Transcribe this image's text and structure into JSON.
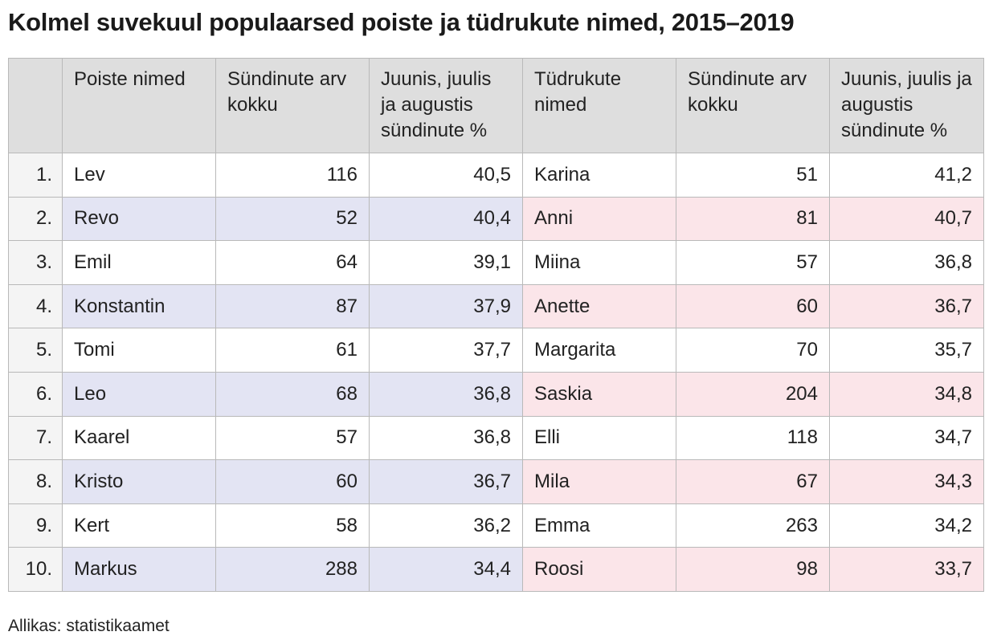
{
  "title": "Kolmel suvekuul populaarsed poiste ja tüdrukute nimed, 2015–2019",
  "source": "Allikas: statistikaamet",
  "colors": {
    "header_bg": "#dedede",
    "boys_highlight": "#e3e4f3",
    "girls_highlight": "#fbe5e9",
    "rank_bg": "#f4f4f4"
  },
  "chart_data": {
    "type": "table",
    "title": "Kolmel suvekuul populaarsed poiste ja tüdrukute nimed, 2015–2019",
    "headers": {
      "rank": "",
      "boys_name": "Poiste nimed",
      "boys_total": "Sündinute arv kokku",
      "boys_pct": "Juunis, juulis ja augustis sündinute %",
      "girls_name": "Tüdrukute nimed",
      "girls_total": "Sündinute arv kokku",
      "girls_pct": "Juunis, juulis ja augustis sündinute %"
    },
    "rows": [
      {
        "rank": "1.",
        "boy": "Lev",
        "boy_total": "116",
        "boy_pct": "40,5",
        "girl": "Karina",
        "girl_total": "51",
        "girl_pct": "41,2"
      },
      {
        "rank": "2.",
        "boy": "Revo",
        "boy_total": "52",
        "boy_pct": "40,4",
        "girl": "Anni",
        "girl_total": "81",
        "girl_pct": "40,7"
      },
      {
        "rank": "3.",
        "boy": "Emil",
        "boy_total": "64",
        "boy_pct": "39,1",
        "girl": "Miina",
        "girl_total": "57",
        "girl_pct": "36,8"
      },
      {
        "rank": "4.",
        "boy": "Konstantin",
        "boy_total": "87",
        "boy_pct": "37,9",
        "girl": "Anette",
        "girl_total": "60",
        "girl_pct": "36,7"
      },
      {
        "rank": "5.",
        "boy": "Tomi",
        "boy_total": "61",
        "boy_pct": "37,7",
        "girl": "Margarita",
        "girl_total": "70",
        "girl_pct": "35,7"
      },
      {
        "rank": "6.",
        "boy": "Leo",
        "boy_total": "68",
        "boy_pct": "36,8",
        "girl": "Saskia",
        "girl_total": "204",
        "girl_pct": "34,8"
      },
      {
        "rank": "7.",
        "boy": "Kaarel",
        "boy_total": "57",
        "boy_pct": "36,8",
        "girl": "Elli",
        "girl_total": "118",
        "girl_pct": "34,7"
      },
      {
        "rank": "8.",
        "boy": "Kristo",
        "boy_total": "60",
        "boy_pct": "36,7",
        "girl": "Mila",
        "girl_total": "67",
        "girl_pct": "34,3"
      },
      {
        "rank": "9.",
        "boy": "Kert",
        "boy_total": "58",
        "boy_pct": "36,2",
        "girl": "Emma",
        "girl_total": "263",
        "girl_pct": "34,2"
      },
      {
        "rank": "10.",
        "boy": "Markus",
        "boy_total": "288",
        "boy_pct": "34,4",
        "girl": "Roosi",
        "girl_total": "98",
        "girl_pct": "33,7"
      }
    ]
  }
}
